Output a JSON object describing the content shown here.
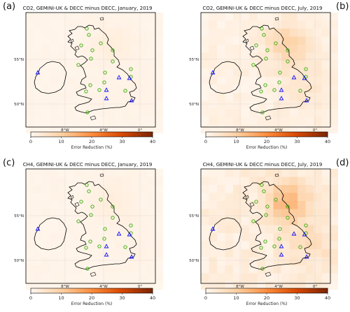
{
  "panels": [
    {
      "letter": "(a)",
      "title": "CO2, GEMINI-UK & DECC minus DECC, January, 2019",
      "intensity": "low"
    },
    {
      "letter": "(b)",
      "title": "CO2, GEMINI-UK & DECC minus DECC, July, 2019",
      "intensity": "mid"
    },
    {
      "letter": "(c)",
      "title": "CH4, GEMINI-UK & DECC minus DECC, January, 2019",
      "intensity": "low"
    },
    {
      "letter": "(d)",
      "title": "CH4, GEMINI-UK & DECC minus DECC, July, 2019",
      "intensity": "high"
    }
  ],
  "lon_labels": [
    "8°W",
    "4°W",
    "0°"
  ],
  "lat_labels": [
    "55°N",
    "50°N"
  ],
  "colorbar": {
    "label": "Error Reduction (%)",
    "ticks": [
      "0",
      "10",
      "20",
      "30",
      "40"
    ],
    "colors": [
      "#fff5eb",
      "#fdd0a2",
      "#fd8d3c",
      "#d94801",
      "#7f2704"
    ]
  },
  "colors": {
    "land_fill": "#fdf0e0",
    "sea_fill": "#fff6ea",
    "coast": "#000000",
    "gemini_marker": "#33aa00",
    "decc_marker": "#1010ff"
  },
  "markers": {
    "gemini_symbol": "circle",
    "decc_symbol": "triangle"
  }
}
